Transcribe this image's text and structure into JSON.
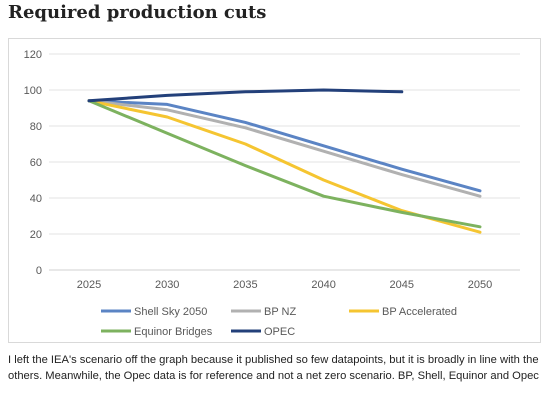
{
  "title": "Required production cuts",
  "caption": "I left the IEA's scenario off the graph because it published so few datapoints, but it is broadly in line with the others. Meanwhile, the Opec data is for reference and not a net zero scenario. BP, Shell, Equinor and Opec",
  "chart_data": {
    "type": "line",
    "x": [
      2025,
      2030,
      2035,
      2040,
      2045,
      2050
    ],
    "ylim": [
      0,
      120
    ],
    "yticks": [
      0,
      20,
      40,
      60,
      80,
      100,
      120
    ],
    "grid": true,
    "legend_position": "bottom",
    "series": [
      {
        "name": "Shell Sky 2050",
        "color": "#5b84c4",
        "values": [
          94,
          92,
          82,
          69,
          56,
          44
        ]
      },
      {
        "name": "BP NZ",
        "color": "#b1b1b1",
        "values": [
          94,
          89,
          79,
          66,
          53,
          41
        ]
      },
      {
        "name": "BP Accelerated",
        "color": "#f5c531",
        "values": [
          94,
          85,
          70,
          50,
          33,
          21
        ]
      },
      {
        "name": "Equinor Bridges",
        "color": "#7db25f",
        "values": [
          94,
          76,
          58,
          41,
          32,
          24
        ]
      },
      {
        "name": "OPEC",
        "color": "#23407a",
        "values": [
          94,
          97,
          99,
          100,
          99,
          null
        ]
      }
    ]
  }
}
